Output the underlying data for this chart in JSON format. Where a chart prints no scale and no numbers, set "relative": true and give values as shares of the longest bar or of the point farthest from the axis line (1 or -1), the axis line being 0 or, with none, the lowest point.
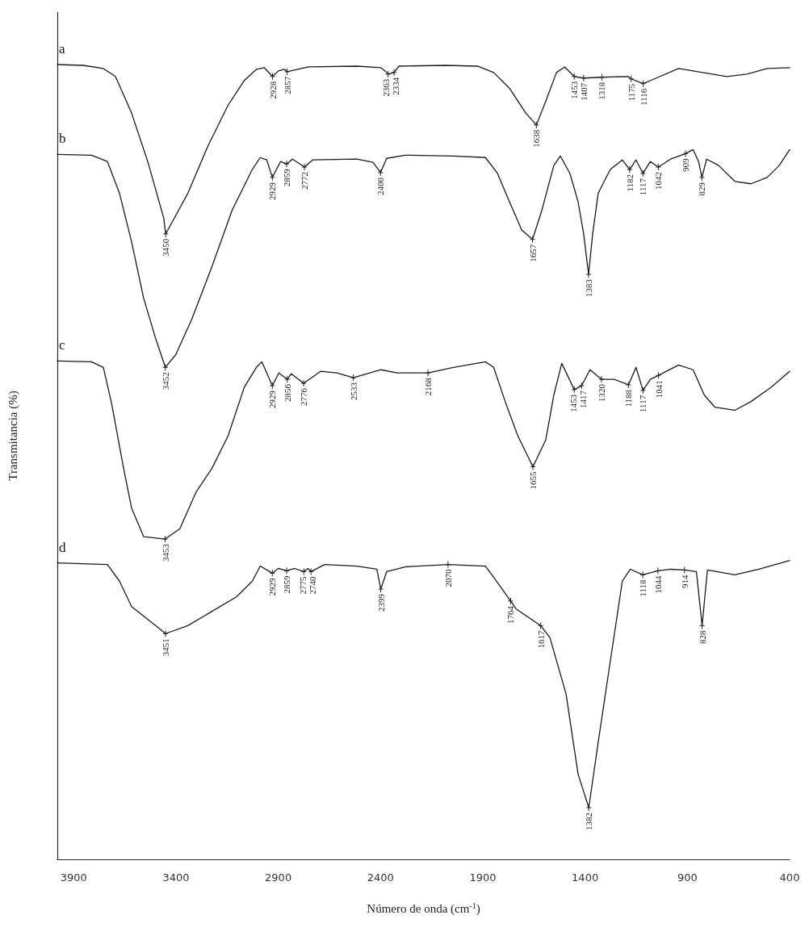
{
  "chart_data": {
    "type": "line",
    "relative": true,
    "xlabel": "Número de onda (cm$^{-1}$)",
    "ylabel": "Transmitancia (%)",
    "xlim": [
      3980,
      400
    ],
    "xticks": [
      3900,
      3400,
      2900,
      2400,
      1900,
      1400,
      900,
      400
    ],
    "series": [
      {
        "name": "a",
        "color": "#1a1a1a",
        "x": [
          3980,
          3853,
          3755,
          3696,
          3617,
          3538,
          3460,
          3450,
          3342,
          3243,
          3145,
          3066,
          3007,
          2968,
          2928,
          2900,
          2869,
          2857,
          2752,
          2516,
          2398,
          2378,
          2363,
          2334,
          2310,
          2083,
          1926,
          1847,
          1769,
          1690,
          1638,
          1592,
          1540,
          1500,
          1453,
          1407,
          1318,
          1190,
          1175,
          1116,
          1061,
          943,
          825,
          707,
          609,
          510,
          400
        ],
        "values": [
          1.0,
          0.999,
          0.995,
          0.985,
          0.939,
          0.878,
          0.807,
          0.787,
          0.838,
          0.898,
          0.949,
          0.98,
          0.994,
          0.996,
          0.985,
          0.992,
          0.994,
          0.991,
          0.997,
          0.998,
          0.996,
          0.992,
          0.988,
          0.99,
          0.998,
          0.999,
          0.998,
          0.99,
          0.97,
          0.939,
          0.924,
          0.954,
          0.99,
          0.997,
          0.985,
          0.983,
          0.984,
          0.985,
          0.982,
          0.976,
          0.982,
          0.995,
          0.99,
          0.985,
          0.988,
          0.995,
          0.996
        ]
      },
      {
        "name": "b",
        "color": "#1a1a1a",
        "x": [
          3980,
          3813,
          3735,
          3676,
          3617,
          3558,
          3499,
          3452,
          3401,
          3322,
          3224,
          3125,
          3027,
          2988,
          2956,
          2929,
          2889,
          2859,
          2830,
          2772,
          2732,
          2516,
          2437,
          2400,
          2370,
          2280,
          2044,
          1887,
          1828,
          1769,
          1710,
          1657,
          1611,
          1553,
          1521,
          1474,
          1434,
          1407,
          1383,
          1363,
          1336,
          1277,
          1218,
          1182,
          1151,
          1117,
          1081,
          1042,
          982,
          909,
          872,
          845,
          829,
          806,
          747,
          668,
          589,
          510,
          451,
          400
        ],
        "values": [
          0.887,
          0.886,
          0.878,
          0.838,
          0.777,
          0.706,
          0.655,
          0.619,
          0.635,
          0.68,
          0.746,
          0.817,
          0.868,
          0.883,
          0.88,
          0.858,
          0.878,
          0.875,
          0.881,
          0.871,
          0.88,
          0.881,
          0.877,
          0.864,
          0.882,
          0.886,
          0.885,
          0.883,
          0.863,
          0.827,
          0.792,
          0.78,
          0.817,
          0.873,
          0.885,
          0.863,
          0.827,
          0.787,
          0.736,
          0.787,
          0.838,
          0.868,
          0.88,
          0.868,
          0.88,
          0.863,
          0.878,
          0.871,
          0.881,
          0.888,
          0.893,
          0.878,
          0.858,
          0.881,
          0.873,
          0.853,
          0.85,
          0.858,
          0.873,
          0.893
        ]
      },
      {
        "name": "c",
        "color": "#1a1a1a",
        "x": [
          3980,
          3813,
          3755,
          3715,
          3656,
          3617,
          3558,
          3453,
          3381,
          3302,
          3224,
          3145,
          3066,
          3007,
          2980,
          2929,
          2897,
          2856,
          2836,
          2776,
          2693,
          2614,
          2533,
          2398,
          2319,
          2168,
          2044,
          1887,
          1847,
          1788,
          1729,
          1655,
          1592,
          1553,
          1514,
          1453,
          1417,
          1376,
          1320,
          1258,
          1188,
          1151,
          1117,
          1081,
          1041,
          943,
          872,
          817,
          766,
          668,
          589,
          491,
          400
        ],
        "values": [
          0.627,
          0.626,
          0.619,
          0.574,
          0.492,
          0.442,
          0.406,
          0.403,
          0.416,
          0.462,
          0.492,
          0.533,
          0.594,
          0.619,
          0.626,
          0.596,
          0.612,
          0.604,
          0.611,
          0.599,
          0.614,
          0.612,
          0.606,
          0.616,
          0.612,
          0.612,
          0.619,
          0.626,
          0.619,
          0.574,
          0.533,
          0.494,
          0.528,
          0.584,
          0.624,
          0.591,
          0.596,
          0.616,
          0.604,
          0.604,
          0.597,
          0.619,
          0.59,
          0.604,
          0.609,
          0.622,
          0.616,
          0.584,
          0.569,
          0.565,
          0.576,
          0.594,
          0.614
        ]
      },
      {
        "name": "d",
        "color": "#1a1a1a",
        "x": [
          3980,
          3735,
          3676,
          3617,
          3538,
          3451,
          3342,
          3224,
          3106,
          3027,
          2988,
          2929,
          2900,
          2859,
          2820,
          2775,
          2755,
          2740,
          2673,
          2516,
          2418,
          2399,
          2370,
          2280,
          2070,
          1887,
          1847,
          1764,
          1737,
          1617,
          1572,
          1493,
          1434,
          1382,
          1336,
          1277,
          1218,
          1179,
          1118,
          1044,
          982,
          914,
          856,
          828,
          802,
          668,
          550,
          400
        ],
        "values": [
          0.373,
          0.371,
          0.35,
          0.318,
          0.302,
          0.284,
          0.294,
          0.312,
          0.33,
          0.35,
          0.369,
          0.36,
          0.366,
          0.363,
          0.366,
          0.362,
          0.366,
          0.362,
          0.371,
          0.369,
          0.365,
          0.34,
          0.362,
          0.368,
          0.371,
          0.369,
          0.355,
          0.325,
          0.315,
          0.294,
          0.279,
          0.208,
          0.107,
          0.065,
          0.147,
          0.249,
          0.35,
          0.365,
          0.358,
          0.363,
          0.365,
          0.364,
          0.362,
          0.294,
          0.364,
          0.358,
          0.365,
          0.376
        ]
      }
    ],
    "annotations": [
      {
        "text": "3450",
        "x": 3450,
        "y": 0.787
      },
      {
        "text": "2928",
        "x": 2928,
        "y": 0.985
      },
      {
        "text": "2857",
        "x": 2857,
        "y": 0.991
      },
      {
        "text": "2363",
        "x": 2363,
        "y": 0.988
      },
      {
        "text": "2334",
        "x": 2334,
        "y": 0.99
      },
      {
        "text": "1638",
        "x": 1638,
        "y": 0.924
      },
      {
        "text": "1453",
        "x": 1453,
        "y": 0.985
      },
      {
        "text": "1407",
        "x": 1407,
        "y": 0.983
      },
      {
        "text": "1318",
        "x": 1318,
        "y": 0.984
      },
      {
        "text": "1175",
        "x": 1175,
        "y": 0.982
      },
      {
        "text": "1116",
        "x": 1116,
        "y": 0.976
      },
      {
        "text": "3452",
        "x": 3452,
        "y": 0.619
      },
      {
        "text": "2929",
        "x": 2929,
        "y": 0.858
      },
      {
        "text": "2859",
        "x": 2859,
        "y": 0.875
      },
      {
        "text": "2772",
        "x": 2772,
        "y": 0.871
      },
      {
        "text": "2400",
        "x": 2400,
        "y": 0.864
      },
      {
        "text": "1657",
        "x": 1657,
        "y": 0.78
      },
      {
        "text": "1383",
        "x": 1383,
        "y": 0.736
      },
      {
        "text": "1182",
        "x": 1182,
        "y": 0.868
      },
      {
        "text": "1117",
        "x": 1117,
        "y": 0.863
      },
      {
        "text": "1042",
        "x": 1042,
        "y": 0.871
      },
      {
        "text": "909",
        "x": 909,
        "y": 0.888
      },
      {
        "text": "829",
        "x": 829,
        "y": 0.858
      },
      {
        "text": "3453",
        "x": 3453,
        "y": 0.403
      },
      {
        "text": "2929",
        "x": 2929,
        "y": 0.596
      },
      {
        "text": "2856",
        "x": 2856,
        "y": 0.604
      },
      {
        "text": "2776",
        "x": 2776,
        "y": 0.599
      },
      {
        "text": "2533",
        "x": 2533,
        "y": 0.606
      },
      {
        "text": "2168",
        "x": 2168,
        "y": 0.612
      },
      {
        "text": "1655",
        "x": 1655,
        "y": 0.494
      },
      {
        "text": "1453",
        "x": 1453,
        "y": 0.591
      },
      {
        "text": "1417",
        "x": 1417,
        "y": 0.596
      },
      {
        "text": "1320",
        "x": 1320,
        "y": 0.604
      },
      {
        "text": "1188",
        "x": 1188,
        "y": 0.597
      },
      {
        "text": "1117",
        "x": 1117,
        "y": 0.59
      },
      {
        "text": "1041",
        "x": 1041,
        "y": 0.609
      },
      {
        "text": "3451",
        "x": 3451,
        "y": 0.284
      },
      {
        "text": "2929",
        "x": 2929,
        "y": 0.36
      },
      {
        "text": "2859",
        "x": 2859,
        "y": 0.363
      },
      {
        "text": "2775",
        "x": 2775,
        "y": 0.362
      },
      {
        "text": "2740",
        "x": 2740,
        "y": 0.362
      },
      {
        "text": "2399",
        "x": 2399,
        "y": 0.34
      },
      {
        "text": "2070",
        "x": 2070,
        "y": 0.371
      },
      {
        "text": "1764",
        "x": 1764,
        "y": 0.325
      },
      {
        "text": "1617",
        "x": 1617,
        "y": 0.294
      },
      {
        "text": "1382",
        "x": 1382,
        "y": 0.065
      },
      {
        "text": "1118",
        "x": 1118,
        "y": 0.358
      },
      {
        "text": "1044",
        "x": 1044,
        "y": 0.363
      },
      {
        "text": "914",
        "x": 914,
        "y": 0.364
      },
      {
        "text": "828",
        "x": 828,
        "y": 0.294
      }
    ]
  }
}
